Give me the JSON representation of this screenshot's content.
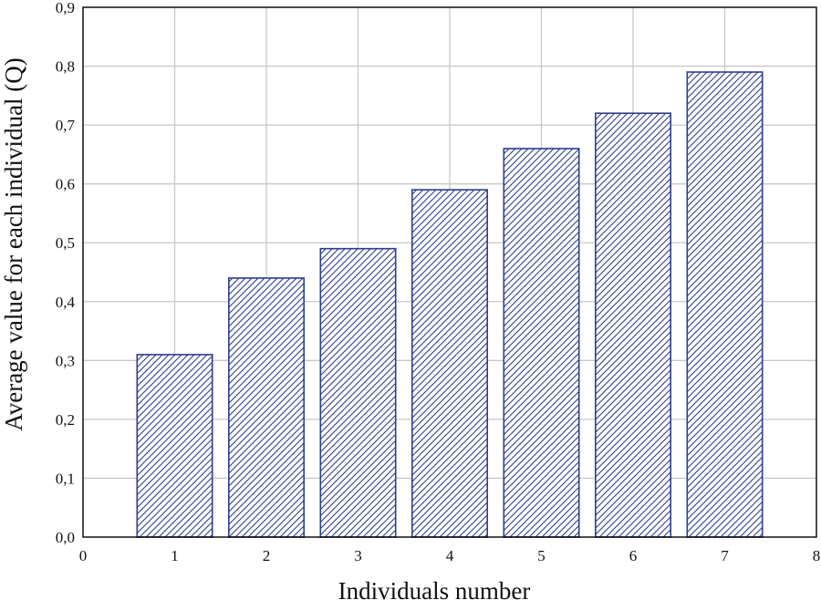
{
  "chart_data": {
    "type": "bar",
    "title": "",
    "xlabel": "Individuals number",
    "ylabel": "Average value for each individual (Q)",
    "x": [
      1,
      2,
      3,
      4,
      5,
      6,
      7
    ],
    "values": [
      0.31,
      0.44,
      0.49,
      0.59,
      0.66,
      0.72,
      0.79
    ],
    "xlim": [
      0,
      8
    ],
    "ylim": [
      0.0,
      0.9
    ],
    "x_ticks": [
      "0",
      "1",
      "2",
      "3",
      "4",
      "5",
      "6",
      "7",
      "8"
    ],
    "y_ticks": [
      "0,0",
      "0,1",
      "0,2",
      "0,3",
      "0,4",
      "0,5",
      "0,6",
      "0,7",
      "0,8",
      "0,9"
    ],
    "bar_width": 0.82,
    "grid": true,
    "legend": "none",
    "colors": {
      "bar_edge": "#2e3d8f",
      "hatch": "#2e3d8f",
      "grid": "#c8c8c8",
      "axis": "#000000"
    }
  }
}
